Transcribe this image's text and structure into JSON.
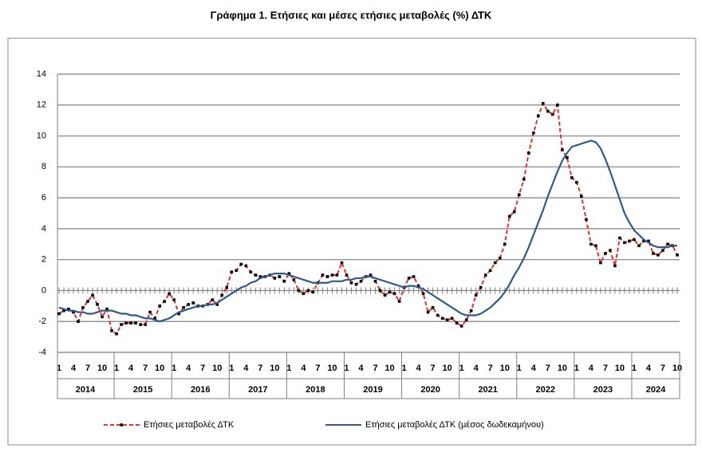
{
  "chart_data": {
    "type": "line",
    "title": "Γράφημα 1. Ετήσιες και μέσες ετήσιες μεταβολές (%) ΔΤΚ",
    "categories": [
      "1",
      null,
      null,
      "4",
      null,
      null,
      "7",
      null,
      null,
      "10",
      null,
      null,
      "1",
      null,
      null,
      "4",
      null,
      null,
      "7",
      null,
      null,
      "10",
      null,
      null,
      "1",
      null,
      null,
      "4",
      null,
      null,
      "7",
      null,
      null,
      "10",
      null,
      null,
      "1",
      null,
      null,
      "4",
      null,
      null,
      "7",
      null,
      null,
      "10",
      null,
      null,
      "1",
      null,
      null,
      "4",
      null,
      null,
      "7",
      null,
      null,
      "10",
      null,
      null,
      "1",
      null,
      null,
      "4",
      null,
      null,
      "7",
      null,
      null,
      "10",
      null,
      null,
      "1",
      null,
      null,
      "4",
      null,
      null,
      "7",
      null,
      null,
      "10",
      null,
      null,
      "1",
      null,
      null,
      "4",
      null,
      null,
      "7",
      null,
      null,
      "10",
      null,
      null,
      "1",
      null,
      null,
      "4",
      null,
      null,
      "7",
      null,
      null,
      "10",
      null,
      null,
      "1",
      null,
      null,
      "4",
      null,
      null,
      "7",
      null,
      null,
      "10",
      null,
      null,
      "1",
      null,
      null,
      "4",
      null,
      null,
      "7",
      null,
      null,
      "10"
    ],
    "years": [
      "2014",
      "2015",
      "2016",
      "2017",
      "2018",
      "2019",
      "2020",
      "2021",
      "2022",
      "2023",
      "2024"
    ],
    "ylim": [
      -4,
      14
    ],
    "yticks": [
      -4,
      -2,
      0,
      2,
      4,
      6,
      8,
      10,
      12,
      14
    ],
    "grid": true,
    "series": [
      {
        "name": "Ετήσιες μεταβολές ΔΤΚ",
        "color": "#e8302a",
        "dashed": true,
        "values": [
          -1.5,
          -1.3,
          -1.2,
          -1.4,
          -2.0,
          -1.1,
          -0.7,
          -0.3,
          -0.9,
          -1.7,
          -1.2,
          -2.6,
          -2.8,
          -2.2,
          -2.1,
          -2.1,
          -2.1,
          -2.2,
          -2.2,
          -1.4,
          -1.8,
          -1.0,
          -0.7,
          -0.2,
          -0.6,
          -1.5,
          -1.1,
          -0.9,
          -0.8,
          -1.0,
          -1.0,
          -0.9,
          -0.6,
          -0.9,
          -0.3,
          0.2,
          1.2,
          1.3,
          1.7,
          1.6,
          1.2,
          1.0,
          0.9,
          0.9,
          1.0,
          0.8,
          0.9,
          0.6,
          1.1,
          0.7,
          0.0,
          -0.2,
          0.0,
          -0.1,
          0.5,
          1.0,
          0.9,
          1.0,
          1.0,
          1.8,
          1.0,
          0.5,
          0.4,
          0.6,
          0.9,
          1.0,
          0.6,
          0.0,
          -0.3,
          -0.1,
          -0.2,
          -0.7,
          0.2,
          0.8,
          0.9,
          0.3,
          -0.2,
          -1.4,
          -1.1,
          -1.6,
          -1.8,
          -1.9,
          -1.8,
          -2.1,
          -2.3,
          -1.9,
          -1.3,
          -0.3,
          0.2,
          1.0,
          1.3,
          1.8,
          2.1,
          3.0,
          4.8,
          5.1,
          6.2,
          7.2,
          8.9,
          10.2,
          11.3,
          12.1,
          11.6,
          11.4,
          12.0,
          9.1,
          8.6,
          7.3,
          7.0,
          6.1,
          4.6,
          3.0,
          2.9,
          1.8,
          2.4,
          2.6,
          1.6,
          3.4,
          3.1,
          3.2,
          3.3,
          2.9,
          3.2,
          3.2,
          2.4,
          2.3,
          2.6,
          3.0,
          2.9,
          2.3
        ]
      },
      {
        "name": "Ετήσιες μεταβολές ΔΤΚ (μέσος δωδεκαμήνου)",
        "color": "#2f5a8c",
        "dashed": false,
        "values": [
          -1.1,
          -1.2,
          -1.3,
          -1.3,
          -1.4,
          -1.4,
          -1.5,
          -1.5,
          -1.4,
          -1.3,
          -1.3,
          -1.3,
          -1.4,
          -1.5,
          -1.5,
          -1.6,
          -1.6,
          -1.7,
          -1.8,
          -1.8,
          -1.9,
          -2.0,
          -1.9,
          -1.8,
          -1.6,
          -1.4,
          -1.3,
          -1.2,
          -1.1,
          -1.0,
          -1.0,
          -0.9,
          -0.9,
          -0.8,
          -0.6,
          -0.4,
          -0.2,
          0.0,
          0.2,
          0.3,
          0.5,
          0.6,
          0.8,
          0.9,
          1.0,
          1.1,
          1.1,
          1.1,
          1.0,
          0.9,
          0.8,
          0.7,
          0.6,
          0.5,
          0.5,
          0.5,
          0.5,
          0.6,
          0.6,
          0.6,
          0.7,
          0.7,
          0.8,
          0.8,
          0.9,
          0.9,
          0.8,
          0.7,
          0.6,
          0.5,
          0.4,
          0.3,
          0.2,
          0.3,
          0.3,
          0.2,
          0.1,
          -0.1,
          -0.3,
          -0.5,
          -0.7,
          -0.9,
          -1.1,
          -1.3,
          -1.5,
          -1.6,
          -1.6,
          -1.6,
          -1.5,
          -1.3,
          -1.1,
          -0.8,
          -0.5,
          -0.1,
          0.4,
          1.0,
          1.5,
          2.1,
          2.8,
          3.6,
          4.4,
          5.2,
          6.1,
          6.9,
          7.7,
          8.4,
          8.9,
          9.3,
          9.4,
          9.5,
          9.6,
          9.7,
          9.6,
          9.2,
          8.5,
          7.7,
          6.8,
          5.9,
          5.0,
          4.4,
          3.9,
          3.6,
          3.3,
          3.1,
          2.9,
          2.8,
          2.8,
          2.8,
          2.9,
          2.9
        ]
      }
    ]
  }
}
